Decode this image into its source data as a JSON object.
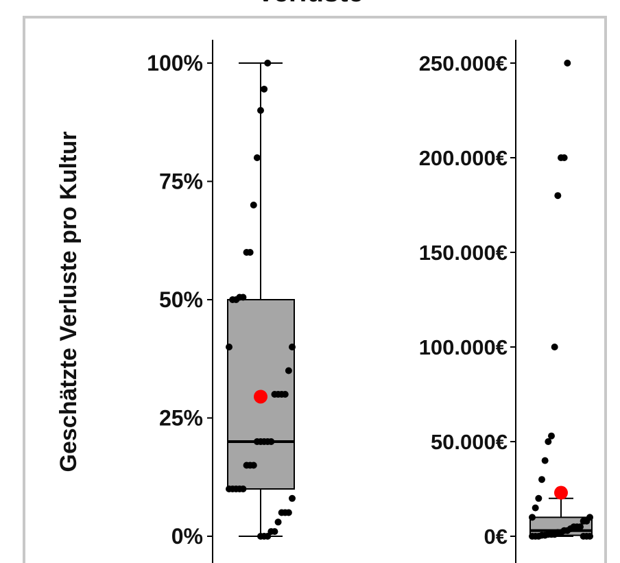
{
  "title": "Verluste",
  "y_label": "Geschätzte Verluste pro Kultur",
  "chart_data": [
    {
      "type": "box",
      "ylim": [
        0,
        100
      ],
      "ticks": [
        {
          "v": 0,
          "label": "0%"
        },
        {
          "v": 25,
          "label": "25%"
        },
        {
          "v": 50,
          "label": "50%"
        },
        {
          "v": 75,
          "label": "75%"
        },
        {
          "v": 100,
          "label": "100%"
        }
      ],
      "box": {
        "q1": 10,
        "median": 20,
        "q3": 50,
        "whisker_low": 0,
        "whisker_high": 100,
        "mean": 29.5
      },
      "points": [
        100,
        94.5,
        90,
        80,
        70,
        60,
        60,
        50.5,
        50.5,
        50,
        50,
        40,
        40,
        35,
        30,
        30,
        30,
        30,
        20,
        20,
        20,
        20,
        20,
        15,
        15,
        15,
        10,
        10,
        10,
        10,
        10,
        8,
        5,
        5,
        5,
        3,
        1,
        1,
        0,
        0,
        0
      ],
      "colors": {
        "box": "#a6a6a6",
        "mean": "#ff0000",
        "points": "#000000"
      }
    },
    {
      "type": "box",
      "ylim": [
        0,
        250000
      ],
      "ticks": [
        {
          "v": 0,
          "label": "0€"
        },
        {
          "v": 50000,
          "label": "50.000€"
        },
        {
          "v": 100000,
          "label": "100.000€"
        },
        {
          "v": 150000,
          "label": "150.000€"
        },
        {
          "v": 200000,
          "label": "200.000€"
        },
        {
          "v": 250000,
          "label": "250.000€"
        }
      ],
      "box": {
        "q1": 500,
        "median": 3000,
        "q3": 10000,
        "whisker_low": 0,
        "whisker_high": 20000,
        "mean": 23000
      },
      "points": [
        250000,
        200000,
        200000,
        180000,
        100000,
        53000,
        50000,
        40000,
        30000,
        20000,
        15000,
        10000,
        10000,
        8000,
        8000,
        5000,
        5000,
        5000,
        4000,
        3000,
        3000,
        2000,
        2000,
        1000,
        1000,
        1000,
        500,
        500,
        0,
        0,
        0,
        0,
        0,
        0
      ],
      "colors": {
        "box": "#a6a6a6",
        "mean": "#ff0000",
        "points": "#000000"
      }
    }
  ]
}
